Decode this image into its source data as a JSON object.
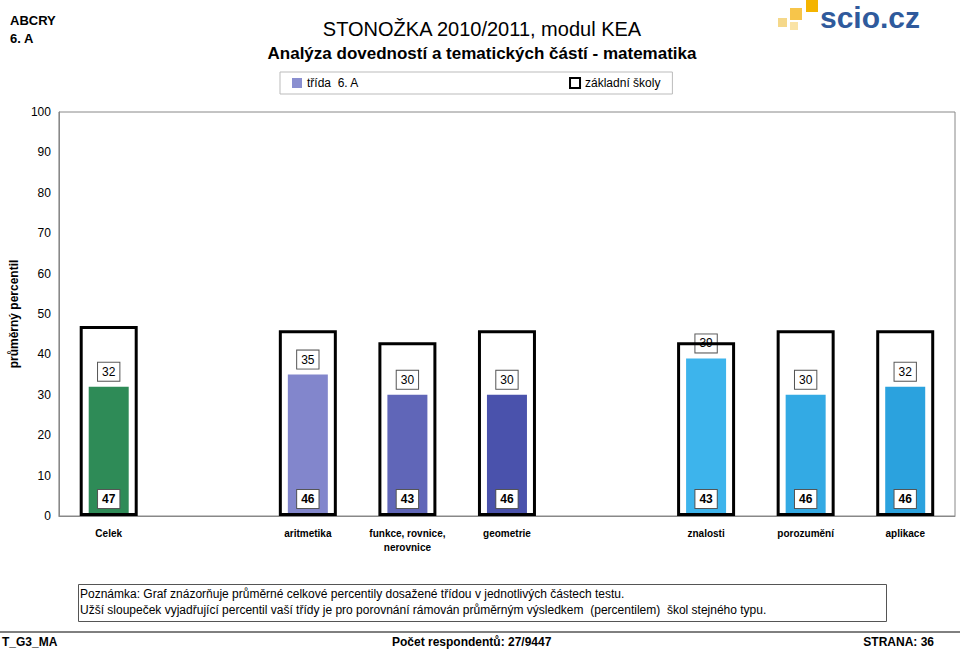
{
  "chart_data": {
    "type": "bar",
    "title": "STONOŽKA 2010/2011, modul KEA",
    "subtitle": "Analýza dovedností a tematických částí - matematika",
    "y_label": "průměrný percentil",
    "categories": [
      "Celek",
      null,
      "aritmetika",
      "funkce, rovnice,\nnerovnice",
      "geometrie",
      null,
      "znalosti",
      "porozumění",
      "aplikace"
    ],
    "series": [
      {
        "name": "třída  6. A",
        "color": "#8a8fd0",
        "colors": [
          "#2e8b57",
          null,
          "#8286cc",
          "#6066b8",
          "#4a52ac",
          null,
          "#3db4ec",
          "#33aae4",
          "#2ba2de"
        ],
        "values": [
          32,
          null,
          35,
          30,
          30,
          null,
          39,
          30,
          32
        ]
      },
      {
        "name": "základní školy",
        "color": "#000000",
        "values": [
          47,
          null,
          46,
          43,
          46,
          null,
          43,
          46,
          46
        ]
      }
    ],
    "ylim": [
      0,
      100
    ],
    "yticks": [
      0,
      10,
      20,
      30,
      40,
      50,
      60,
      70,
      80,
      90,
      100
    ],
    "grid": false,
    "legend": "top",
    "data_labels": true,
    "annotations": [
      "ABCRY",
      "6. A",
      "scio.cz",
      "Poznámka: Graf znázorňuje průměrné celkové percentily dosažené třídou v jednotlivých částech testu.",
      "Užší sloupeček vyjadřující percentil vaší třídy je pro porovnání rámován průměrným výsledkem  (percentilem)  škol stejného typu.",
      "T_G3_MA",
      "Počet respondentů: 27/9447",
      "STRANA: 36"
    ]
  }
}
